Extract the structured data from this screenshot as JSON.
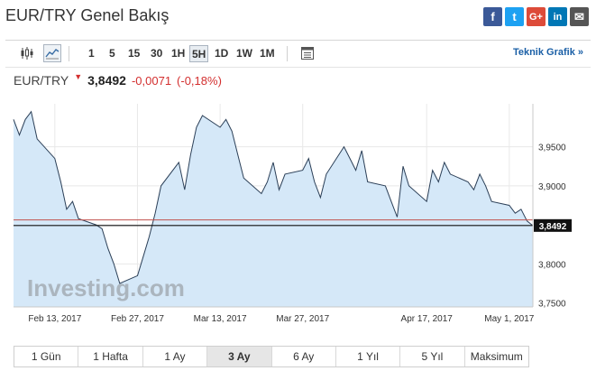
{
  "header": {
    "title": "EUR/TRY Genel Bakış"
  },
  "share": [
    {
      "name": "facebook-share-button",
      "glyph": "f"
    },
    {
      "name": "twitter-share-button",
      "glyph": "t"
    },
    {
      "name": "google-plus-share-button",
      "glyph": "G+"
    },
    {
      "name": "linkedin-share-button",
      "glyph": "in"
    },
    {
      "name": "email-share-button",
      "glyph": "✉"
    }
  ],
  "toolbar": {
    "intervals": [
      "1",
      "5",
      "15",
      "30",
      "1H",
      "5H",
      "1D",
      "1W",
      "1M"
    ],
    "active_interval": "5H",
    "tech_link": "Teknik Grafik »"
  },
  "quote": {
    "name": "EUR/TRY",
    "price": "3,8492",
    "change": "-0,0071",
    "change_pct": "(-0,18%)"
  },
  "chart_data": {
    "type": "area",
    "title": "",
    "xlabel": "",
    "ylabel": "",
    "x_ticks": [
      "Feb 13, 2017",
      "Feb 27, 2017",
      "Mar 13, 2017",
      "Mar 27, 2017",
      "Apr 17, 2017",
      "May 1, 2017"
    ],
    "y_ticks": [
      "3,9500",
      "3,9000",
      "3,8500",
      "3,8000",
      "3,7500"
    ],
    "ylim": [
      3.745,
      4.005
    ],
    "last_value_label": "3,8492",
    "last_value": 3.8492,
    "previous_close": 3.8563,
    "watermark": "Investing.com",
    "series": [
      {
        "x": [
          "2017-02-06",
          "2017-02-07",
          "2017-02-08",
          "2017-02-09",
          "2017-02-10",
          "2017-02-13",
          "2017-02-14",
          "2017-02-15",
          "2017-02-16",
          "2017-02-17",
          "2017-02-20",
          "2017-02-21",
          "2017-02-22",
          "2017-02-23",
          "2017-02-24",
          "2017-02-27",
          "2017-02-28",
          "2017-03-01",
          "2017-03-02",
          "2017-03-03",
          "2017-03-06",
          "2017-03-07",
          "2017-03-08",
          "2017-03-09",
          "2017-03-10",
          "2017-03-13",
          "2017-03-14",
          "2017-03-15",
          "2017-03-16",
          "2017-03-17",
          "2017-03-20",
          "2017-03-21",
          "2017-03-22",
          "2017-03-23",
          "2017-03-24",
          "2017-03-27",
          "2017-03-28",
          "2017-03-29",
          "2017-03-30",
          "2017-03-31",
          "2017-04-03",
          "2017-04-04",
          "2017-04-05",
          "2017-04-06",
          "2017-04-07",
          "2017-04-10",
          "2017-04-11",
          "2017-04-12",
          "2017-04-13",
          "2017-04-14",
          "2017-04-17",
          "2017-04-18",
          "2017-04-19",
          "2017-04-20",
          "2017-04-21",
          "2017-04-24",
          "2017-04-25",
          "2017-04-26",
          "2017-04-27",
          "2017-04-28",
          "2017-05-01",
          "2017-05-02",
          "2017-05-03",
          "2017-05-04",
          "2017-05-05"
        ],
        "values": [
          3.985,
          3.965,
          3.985,
          3.995,
          3.96,
          3.935,
          3.905,
          3.87,
          3.88,
          3.858,
          3.85,
          3.845,
          3.82,
          3.8,
          3.775,
          3.785,
          3.81,
          3.835,
          3.865,
          3.9,
          3.93,
          3.895,
          3.94,
          3.975,
          3.99,
          3.975,
          3.985,
          3.97,
          3.94,
          3.91,
          3.89,
          3.905,
          3.93,
          3.895,
          3.915,
          3.92,
          3.935,
          3.905,
          3.885,
          3.915,
          3.95,
          3.935,
          3.92,
          3.945,
          3.905,
          3.9,
          3.88,
          3.86,
          3.925,
          3.9,
          3.88,
          3.92,
          3.905,
          3.93,
          3.915,
          3.905,
          3.895,
          3.915,
          3.9,
          3.88,
          3.875,
          3.865,
          3.87,
          3.855,
          3.849
        ]
      }
    ]
  },
  "ranges": [
    "1 Gün",
    "1 Hafta",
    "1 Ay",
    "3 Ay",
    "6 Ay",
    "1 Yıl",
    "5 Yıl",
    "Maksimum"
  ],
  "active_range": "3 Ay"
}
